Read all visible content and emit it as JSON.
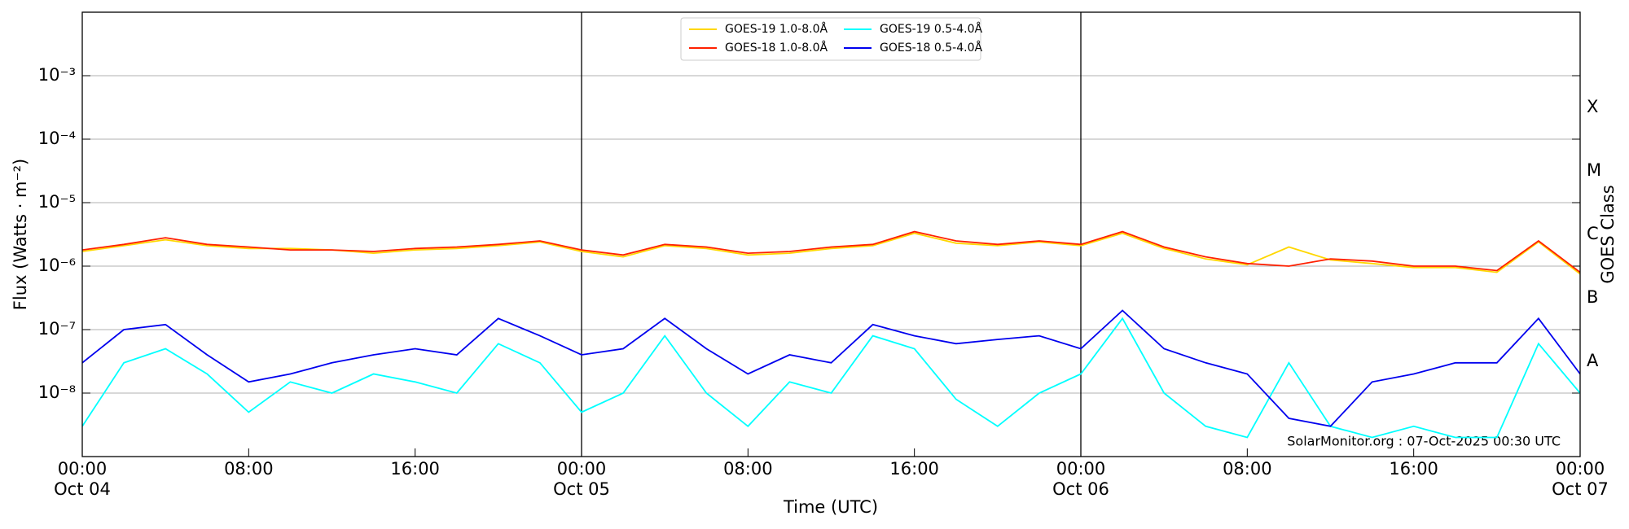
{
  "chart_data": {
    "type": "line",
    "xlabel": "Time (UTC)",
    "ylabel": "Flux (Watts · m⁻²)",
    "y2label": "GOES Class",
    "log_y": true,
    "grid": true,
    "legend": "upper center",
    "annotation": "SolarMonitor.org : 07-Oct-2025 00:30 UTC",
    "x": [
      0,
      2,
      4,
      6,
      8,
      10,
      12,
      14,
      16,
      18,
      20,
      22,
      24,
      26,
      28,
      30,
      32,
      34,
      36,
      38,
      40,
      42,
      44,
      46,
      48,
      50,
      52,
      54,
      56,
      58,
      60,
      62,
      64,
      66,
      68,
      70,
      72
    ],
    "xlim": [
      0,
      72
    ],
    "xticks": [
      {
        "value": 0,
        "label": "00:00\nOct 04"
      },
      {
        "value": 8,
        "label": "08:00"
      },
      {
        "value": 16,
        "label": "16:00"
      },
      {
        "value": 24,
        "label": "00:00\nOct 05"
      },
      {
        "value": 32,
        "label": "08:00"
      },
      {
        "value": 40,
        "label": "16:00"
      },
      {
        "value": 48,
        "label": "00:00\nOct 06"
      },
      {
        "value": 56,
        "label": "08:00"
      },
      {
        "value": 64,
        "label": "16:00"
      },
      {
        "value": 72,
        "label": "00:00\nOct 07"
      }
    ],
    "day_lines": [
      24,
      48
    ],
    "ylim": [
      1e-09,
      0.01
    ],
    "yticks": [
      {
        "value": 1e-08,
        "label": "10⁻⁸"
      },
      {
        "value": 1e-07,
        "label": "10⁻⁷"
      },
      {
        "value": 1e-06,
        "label": "10⁻⁶"
      },
      {
        "value": 1e-05,
        "label": "10⁻⁵"
      },
      {
        "value": 0.0001,
        "label": "10⁻⁴"
      },
      {
        "value": 0.001,
        "label": "10⁻³"
      }
    ],
    "y2lim": [
      1e-09,
      0.01
    ],
    "y2ticks": [
      {
        "value": 3.16e-08,
        "label": "A"
      },
      {
        "value": 3.16e-07,
        "label": "B"
      },
      {
        "value": 3.16e-06,
        "label": "C"
      },
      {
        "value": 3.16e-05,
        "label": "M"
      },
      {
        "value": 0.000316,
        "label": "X"
      }
    ],
    "series": [
      {
        "name": "GOES-19 1.0-8.0Å",
        "color": "#ffd700",
        "values": [
          1.7e-06,
          2.1e-06,
          2.6e-06,
          2.1e-06,
          1.9e-06,
          1.9e-06,
          1.8e-06,
          1.6e-06,
          1.8e-06,
          1.9e-06,
          2.1e-06,
          2.4e-06,
          1.7e-06,
          1.4e-06,
          2.1e-06,
          1.9e-06,
          1.5e-06,
          1.6e-06,
          1.9e-06,
          2.1e-06,
          3.3e-06,
          2.3e-06,
          2.1e-06,
          2.4e-06,
          2.1e-06,
          3.3e-06,
          1.9e-06,
          1.3e-06,
          1.05e-06,
          2e-06,
          1.25e-06,
          1.1e-06,
          9.5e-07,
          9.5e-07,
          8e-07,
          2.4e-06,
          7.5e-07
        ]
      },
      {
        "name": "GOES-18 1.0-8.0Å",
        "color": "#ff2000",
        "values": [
          1.8e-06,
          2.2e-06,
          2.8e-06,
          2.2e-06,
          2e-06,
          1.8e-06,
          1.8e-06,
          1.7e-06,
          1.9e-06,
          2e-06,
          2.2e-06,
          2.5e-06,
          1.8e-06,
          1.5e-06,
          2.2e-06,
          2e-06,
          1.6e-06,
          1.7e-06,
          2e-06,
          2.2e-06,
          3.5e-06,
          2.5e-06,
          2.2e-06,
          2.5e-06,
          2.2e-06,
          3.5e-06,
          2e-06,
          1.4e-06,
          1.1e-06,
          1e-06,
          1.3e-06,
          1.2e-06,
          1e-06,
          1e-06,
          8.5e-07,
          2.5e-06,
          8e-07
        ]
      },
      {
        "name": "GOES-19 0.5-4.0Å",
        "color": "#00ffff",
        "values": [
          3e-09,
          3e-08,
          5e-08,
          2e-08,
          5e-09,
          1.5e-08,
          1e-08,
          2e-08,
          1.5e-08,
          1e-08,
          6e-08,
          3e-08,
          5e-09,
          1e-08,
          8e-08,
          1e-08,
          3e-09,
          1.5e-08,
          1e-08,
          8e-08,
          5e-08,
          8e-09,
          3e-09,
          1e-08,
          2e-08,
          1.5e-07,
          1e-08,
          3e-09,
          2e-09,
          3e-08,
          3e-09,
          2e-09,
          3e-09,
          2e-09,
          2e-09,
          6e-08,
          1e-08
        ]
      },
      {
        "name": "GOES-18 0.5-4.0Å",
        "color": "#0000ee",
        "values": [
          3e-08,
          1e-07,
          1.2e-07,
          4e-08,
          1.5e-08,
          2e-08,
          3e-08,
          4e-08,
          5e-08,
          4e-08,
          1.5e-07,
          8e-08,
          4e-08,
          5e-08,
          1.5e-07,
          5e-08,
          2e-08,
          4e-08,
          3e-08,
          1.2e-07,
          8e-08,
          6e-08,
          7e-08,
          8e-08,
          5e-08,
          2e-07,
          5e-08,
          3e-08,
          2e-08,
          4e-09,
          3e-09,
          1.5e-08,
          2e-08,
          3e-08,
          3e-08,
          1.5e-07,
          2e-08
        ]
      }
    ]
  }
}
